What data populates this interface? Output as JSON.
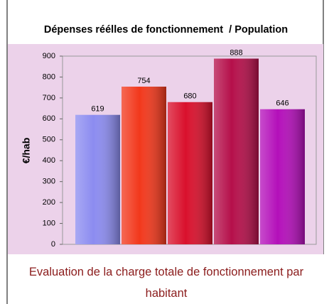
{
  "chart_data": {
    "type": "bar",
    "title": "Dépenses réélles de fonctionnement  / Population",
    "y_label": "€/hab",
    "caption": "Evaluation de la charge totale de fonctionnement par habitant",
    "values": [
      619,
      754,
      680,
      888,
      646
    ],
    "colors": [
      "#8c8cf0",
      "#f2381c",
      "#d9102c",
      "#b50f4a",
      "#b40fba"
    ],
    "ylim": [
      0,
      900
    ],
    "yticks": [
      0,
      100,
      200,
      300,
      400,
      500,
      600,
      700,
      800,
      900
    ]
  }
}
